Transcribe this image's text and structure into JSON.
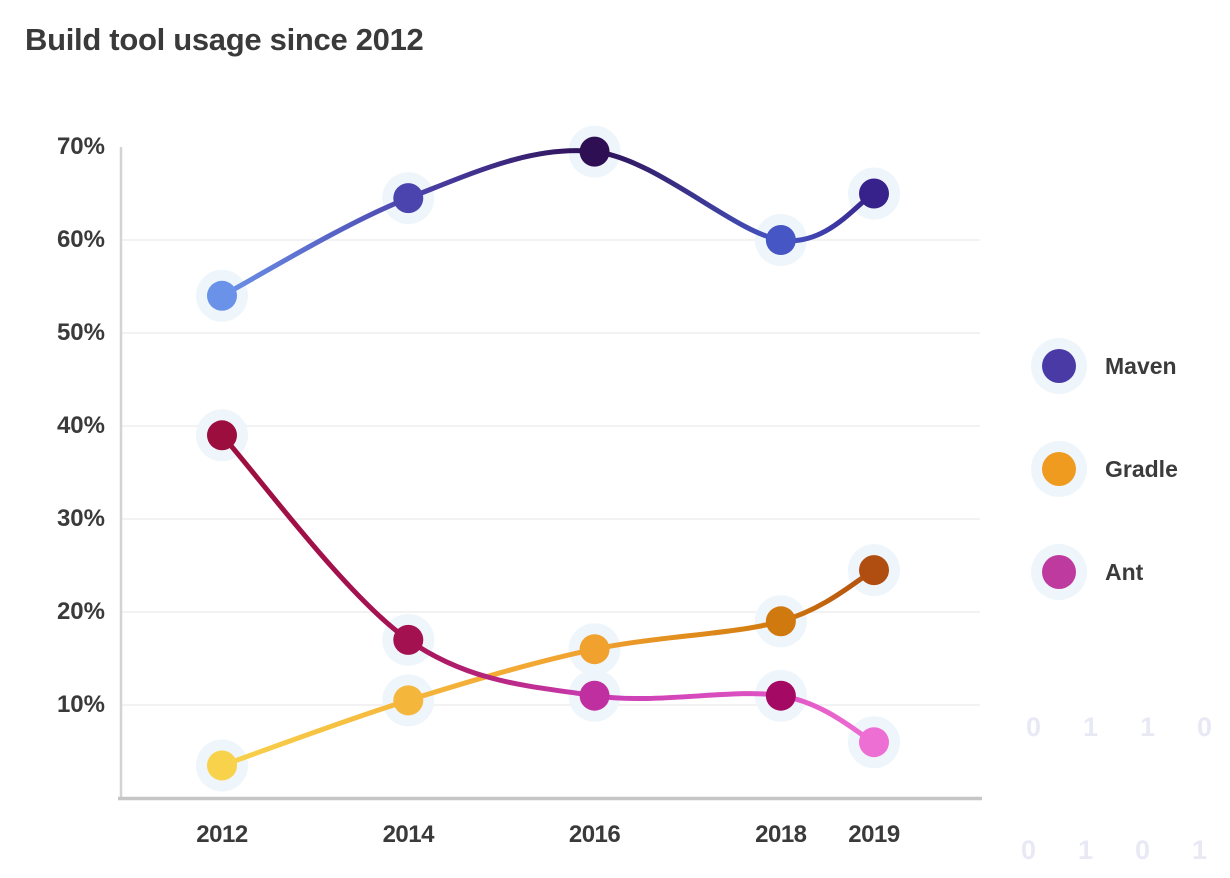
{
  "title": "Build tool usage since 2012",
  "chart_data": {
    "type": "line",
    "title": "Build tool usage since 2012",
    "x": [
      2012,
      2014,
      2016,
      2018,
      2019
    ],
    "x_tick_labels": [
      "2012",
      "2014",
      "2016",
      "2018",
      "2019"
    ],
    "y_ticks": [
      70,
      60,
      50,
      40,
      30,
      20,
      10
    ],
    "y_tick_labels": [
      "70%",
      "60%",
      "50%",
      "40%",
      "30%",
      "20%",
      "10%"
    ],
    "ylim": [
      0,
      70
    ],
    "unit": "%",
    "grid": "horizontal",
    "legend_position": "right",
    "point_halo_color": "#eef5fb",
    "series": [
      {
        "name": "Maven",
        "values": [
          54,
          64.5,
          69.5,
          60,
          65
        ],
        "point_colors": [
          "#6a92e8",
          "#4c44ae",
          "#2e0f53",
          "#4656c4",
          "#36228a"
        ],
        "line_gradient_stops": [
          "#6a92e8",
          "#4c44ae",
          "#2e0f53",
          "#4656c4",
          "#36228a"
        ],
        "legend_color": "#4a3aa5"
      },
      {
        "name": "Gradle",
        "values": [
          3.5,
          10.5,
          16,
          19,
          24.5
        ],
        "point_colors": [
          "#f8d24b",
          "#f5b63c",
          "#f0a12e",
          "#d0790e",
          "#b04d10"
        ],
        "line_gradient_stops": [
          "#f8d24b",
          "#f5b63c",
          "#f0a12e",
          "#d0790e",
          "#b04d10"
        ],
        "legend_color": "#ee9b20"
      },
      {
        "name": "Ant",
        "values": [
          39,
          17,
          11,
          11,
          6
        ],
        "point_colors": [
          "#9c0e3d",
          "#a31150",
          "#bf2f9f",
          "#a40a64",
          "#ee6fd3"
        ],
        "line_gradient_stops": [
          "#9c0e3d",
          "#a61355",
          "#ca3cb2",
          "#e055c5",
          "#ee6fd3"
        ],
        "legend_color": "#bf3a9e"
      }
    ]
  },
  "decor": {
    "binary_rows": [
      "0110",
      "0101"
    ],
    "color": "#e9e9f5"
  }
}
